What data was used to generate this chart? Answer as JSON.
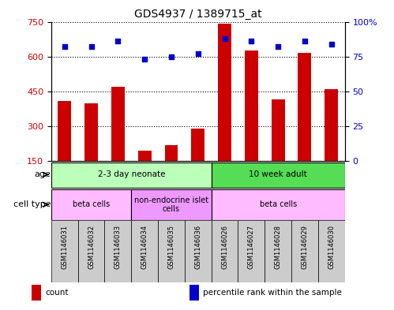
{
  "title": "GDS4937 / 1389715_at",
  "samples": [
    "GSM1146031",
    "GSM1146032",
    "GSM1146033",
    "GSM1146034",
    "GSM1146035",
    "GSM1146036",
    "GSM1146026",
    "GSM1146027",
    "GSM1146028",
    "GSM1146029",
    "GSM1146030"
  ],
  "counts": [
    410,
    400,
    470,
    195,
    220,
    290,
    740,
    625,
    415,
    615,
    460
  ],
  "percentiles": [
    82,
    82,
    86,
    73,
    75,
    77,
    88,
    86,
    82,
    86,
    84
  ],
  "ylim_left": [
    150,
    750
  ],
  "ylim_right": [
    0,
    100
  ],
  "yticks_left": [
    150,
    300,
    450,
    600,
    750
  ],
  "yticks_right": [
    0,
    25,
    50,
    75,
    100
  ],
  "ytick_labels_right": [
    "0",
    "25",
    "50",
    "75",
    "100%"
  ],
  "bar_color": "#cc0000",
  "scatter_color": "#0000cc",
  "age_groups": [
    {
      "label": "2-3 day neonate",
      "start": 0,
      "end": 6,
      "color": "#bbffbb"
    },
    {
      "label": "10 week adult",
      "start": 6,
      "end": 11,
      "color": "#55dd55"
    }
  ],
  "cell_type_groups": [
    {
      "label": "beta cells",
      "start": 0,
      "end": 3,
      "color": "#ffbbff"
    },
    {
      "label": "non-endocrine islet\ncells",
      "start": 3,
      "end": 6,
      "color": "#ee99ff"
    },
    {
      "label": "beta cells",
      "start": 6,
      "end": 11,
      "color": "#ffbbff"
    }
  ],
  "legend_items": [
    {
      "color": "#cc0000",
      "label": "count"
    },
    {
      "color": "#0000cc",
      "label": "percentile rank within the sample"
    }
  ],
  "background_color": "#ffffff",
  "grid_color": "#000000",
  "left_tick_color": "#cc0000",
  "right_tick_color": "#0000cc",
  "label_box_color": "#cccccc"
}
